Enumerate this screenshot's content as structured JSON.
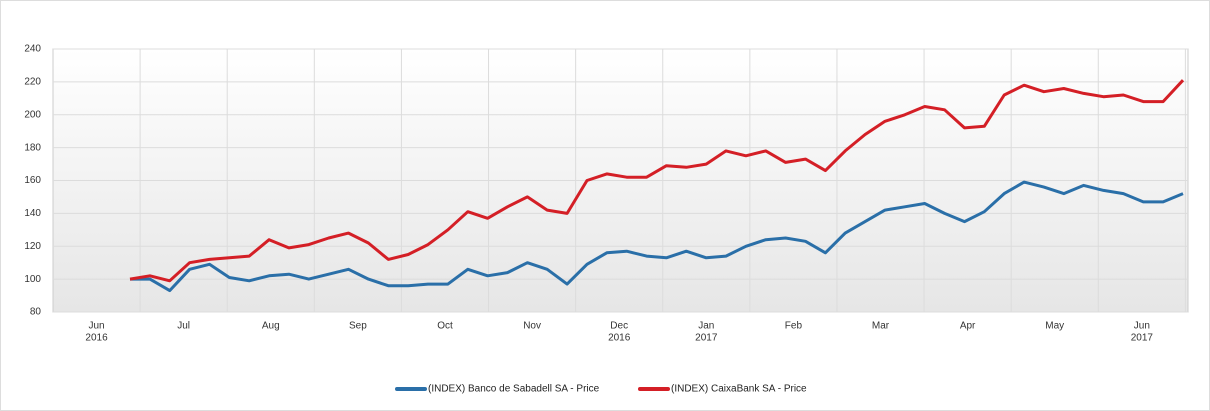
{
  "chart_data": {
    "type": "line",
    "x_labels": [
      [
        "Jun",
        "2016"
      ],
      [
        "Jul"
      ],
      [
        "Aug"
      ],
      [
        "Sep"
      ],
      [
        "Oct"
      ],
      [
        "Nov"
      ],
      [
        "Dec",
        "2016"
      ],
      [
        "Jan",
        "2017"
      ],
      [
        "Feb"
      ],
      [
        "Mar"
      ],
      [
        "Apr"
      ],
      [
        "May"
      ],
      [
        "Jun",
        "2017"
      ]
    ],
    "ylim": [
      80,
      240
    ],
    "yticks": [
      80,
      100,
      120,
      140,
      160,
      180,
      200,
      220,
      240
    ],
    "grid": true,
    "legend": "bottom",
    "series": [
      {
        "name": "(INDEX) Banco de Sabadell SA - Price",
        "color": "#2a6fa8",
        "values": [
          100,
          100,
          93,
          106,
          109,
          101,
          99,
          102,
          103,
          100,
          103,
          106,
          100,
          96,
          96,
          97,
          97,
          106,
          102,
          104,
          110,
          106,
          97,
          109,
          116,
          117,
          114,
          113,
          117,
          113,
          114,
          120,
          124,
          125,
          123,
          116,
          128,
          135,
          142,
          144,
          146,
          140,
          135,
          141,
          152,
          159,
          156,
          152,
          157,
          154,
          152,
          147,
          147,
          152
        ]
      },
      {
        "name": "(INDEX) CaixaBank SA - Price",
        "color": "#d41f26",
        "values": [
          100,
          102,
          99,
          110,
          112,
          113,
          114,
          124,
          119,
          121,
          125,
          128,
          122,
          112,
          115,
          121,
          130,
          141,
          137,
          144,
          150,
          142,
          140,
          160,
          164,
          162,
          162,
          169,
          168,
          170,
          178,
          175,
          178,
          171,
          173,
          166,
          178,
          188,
          196,
          200,
          205,
          203,
          192,
          193,
          212,
          218,
          214,
          216,
          213,
          211,
          212,
          208,
          208,
          221
        ]
      }
    ]
  }
}
